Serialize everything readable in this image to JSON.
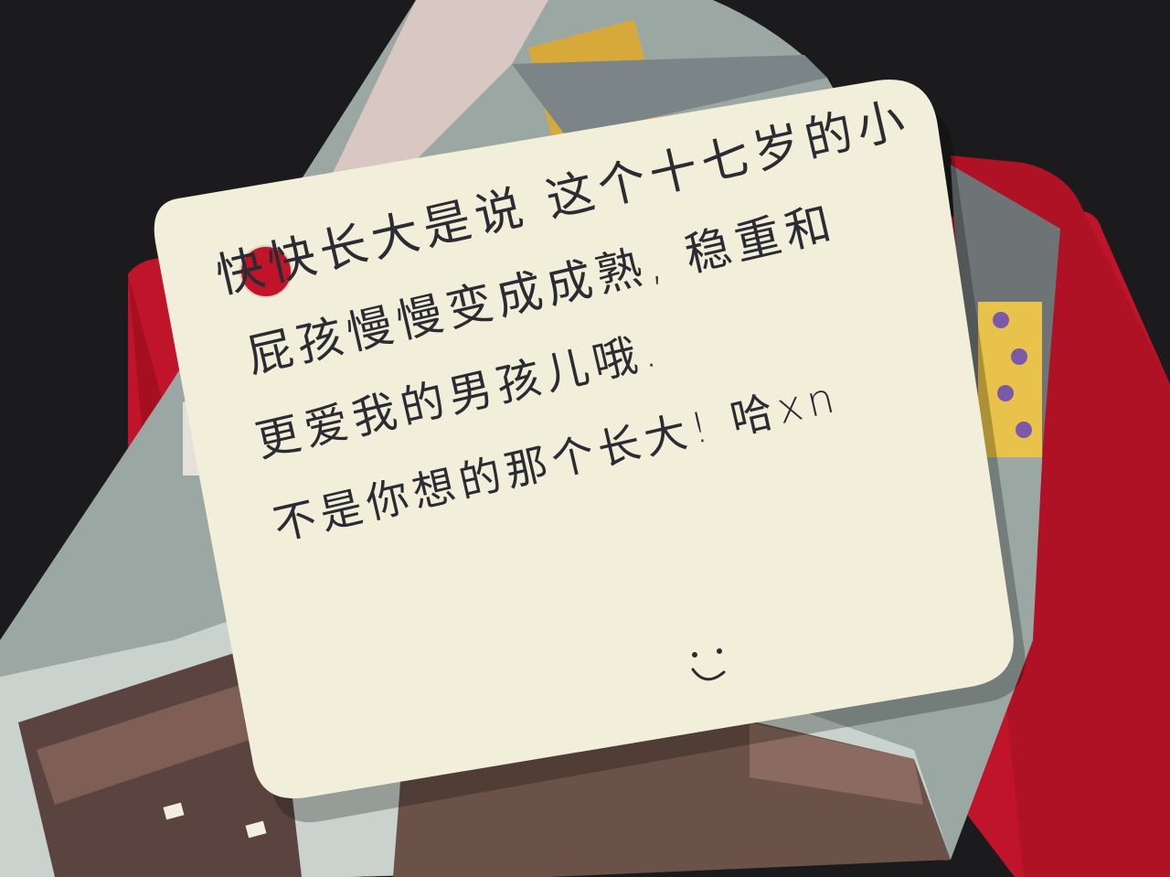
{
  "card": {
    "line1": "快快长大是说 这个十七岁的小",
    "line2": "屁孩慢慢变成成熟, 稳重和",
    "line3": "更爱我的男孩儿哦.",
    "line4": "不是你想的那个长大! 哈xn",
    "smiley": "◡̈"
  },
  "colors": {
    "background": "#1b1b1d",
    "card_paper": "#f1efd9",
    "envelope_red": "#c0142a",
    "ink": "#2b2b33"
  }
}
